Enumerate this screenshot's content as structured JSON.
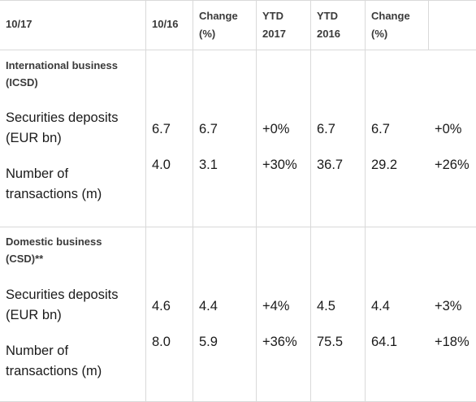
{
  "headers": [
    "10/17",
    "10/16",
    "Change (%)",
    "YTD 2017",
    "YTD 2016",
    "Change (%)"
  ],
  "header_lines": {
    "c0": [
      "10/17"
    ],
    "c1": [
      "10/16"
    ],
    "c2": [
      "Change",
      "(%)"
    ],
    "c3": [
      "YTD",
      "2017"
    ],
    "c4": [
      "YTD",
      "2016"
    ],
    "c5": [
      "Change",
      "(%)"
    ]
  },
  "sections": [
    {
      "title_lines": [
        "International business",
        "(ICSD)"
      ],
      "rows": [
        {
          "label_lines": [
            "Securities deposits",
            "(EUR bn)"
          ],
          "values": [
            "6.7",
            "6.7",
            "+0%",
            "6.7",
            "6.7",
            "+0%"
          ]
        },
        {
          "label_lines": [
            "Number of",
            "transactions (m)"
          ],
          "values": [
            "4.0",
            "3.1",
            "+30%",
            "36.7",
            "29.2",
            "+26%"
          ]
        }
      ]
    },
    {
      "title_lines": [
        "Domestic business",
        "(CSD)**"
      ],
      "rows": [
        {
          "label_lines": [
            "Securities deposits",
            "(EUR bn)"
          ],
          "values": [
            "4.6",
            "4.4",
            "+4%",
            "4.5",
            "4.4",
            "+3%"
          ]
        },
        {
          "label_lines": [
            "Number of",
            "transactions (m)"
          ],
          "values": [
            "8.0",
            "5.9",
            "+36%",
            "75.5",
            "64.1",
            "+18%"
          ]
        }
      ]
    }
  ]
}
